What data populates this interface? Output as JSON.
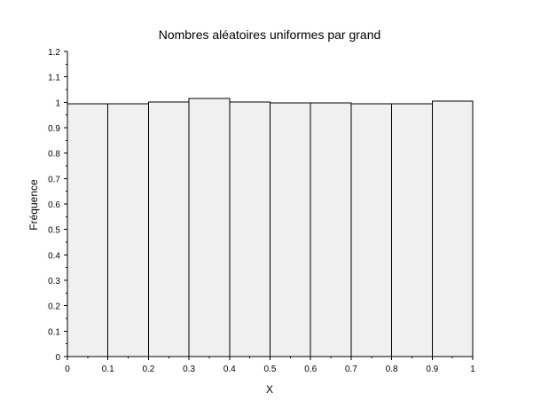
{
  "chart_data": {
    "type": "bar",
    "title": "Nombres aléatoires uniformes par grand",
    "xlabel": "X",
    "ylabel": "Fréquence",
    "xlim": [
      0,
      1
    ],
    "ylim": [
      0,
      1.2
    ],
    "grid": false,
    "bins": [
      {
        "start": 0.0,
        "end": 0.1,
        "value": 0.995
      },
      {
        "start": 0.1,
        "end": 0.2,
        "value": 0.995
      },
      {
        "start": 0.2,
        "end": 0.3,
        "value": 1.002
      },
      {
        "start": 0.3,
        "end": 0.4,
        "value": 1.015
      },
      {
        "start": 0.4,
        "end": 0.5,
        "value": 1.002
      },
      {
        "start": 0.5,
        "end": 0.6,
        "value": 0.998
      },
      {
        "start": 0.6,
        "end": 0.7,
        "value": 0.998
      },
      {
        "start": 0.7,
        "end": 0.8,
        "value": 0.995
      },
      {
        "start": 0.8,
        "end": 0.9,
        "value": 0.995
      },
      {
        "start": 0.9,
        "end": 1.0,
        "value": 1.005
      }
    ],
    "x_ticks": [
      "0",
      "0.1",
      "0.2",
      "0.3",
      "0.4",
      "0.5",
      "0.6",
      "0.7",
      "0.8",
      "0.9",
      "1"
    ],
    "y_ticks": [
      "0",
      "0.1",
      "0.2",
      "0.3",
      "0.4",
      "0.5",
      "0.6",
      "0.7",
      "0.8",
      "0.9",
      "1",
      "1.1",
      "1.2"
    ],
    "bar_color": "#f0f0f0",
    "edge_color": "#000000"
  }
}
